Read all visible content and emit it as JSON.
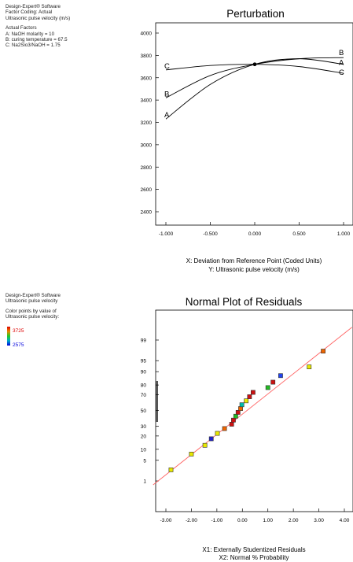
{
  "panel1": {
    "software": "Design-Expert® Software",
    "coding": "Factor Coding: Actual",
    "response": "Ultrasonic pulse velocity (m/s)",
    "factors_header": "Actual Factors",
    "factors": [
      "A: NaOH molarity = 10",
      "B: curing temperature = 67.5",
      "C: Na2Sio3/NaOH = 1.75"
    ]
  },
  "panel2": {
    "software": "Design-Expert® Software",
    "response": "Ultrasonic pulse velocity",
    "color_header": "Color points by value of",
    "color_sub": "Ultrasonic pulse velocity:",
    "legend_max": "3725",
    "legend_min": "2575",
    "legend_max_color": "#dd0000",
    "legend_min_color": "#0000dd"
  },
  "chart_data": [
    {
      "type": "line",
      "title": "Perturbation",
      "xlabel": "X: Deviation from Reference Point (Coded Units)",
      "ylabel": "Y: Ultrasonic pulse velocity (m/s)",
      "xlim": [
        -1.0,
        1.0
      ],
      "ylim": [
        2300,
        4100
      ],
      "xticks": [
        "-1.000",
        "-0.500",
        "0.000",
        "0.500",
        "1.000"
      ],
      "xtick_values": [
        -1,
        -0.5,
        0,
        0.5,
        1
      ],
      "yticks": [
        "2400",
        "2600",
        "2800",
        "3000",
        "3200",
        "3400",
        "3600",
        "3800",
        "4000"
      ],
      "ytick_values": [
        2400,
        2600,
        2800,
        3000,
        3200,
        3400,
        3600,
        3800,
        4000
      ],
      "series": [
        {
          "name": "A",
          "x": [
            -1,
            -0.5,
            0,
            0.5,
            1
          ],
          "y": [
            3230,
            3540,
            3720,
            3770,
            3720
          ]
        },
        {
          "name": "B",
          "x": [
            -1,
            -0.5,
            0,
            0.5,
            1
          ],
          "y": [
            3420,
            3620,
            3720,
            3770,
            3780
          ]
        },
        {
          "name": "C",
          "x": [
            -1,
            -0.5,
            0,
            0.5,
            1
          ],
          "y": [
            3670,
            3710,
            3720,
            3700,
            3640
          ]
        }
      ],
      "reference_point": {
        "x": 0,
        "y": 3720
      }
    },
    {
      "type": "scatter",
      "title": "Normal Plot of Residuals",
      "xlabel": "X1: Externally Studentized Residuals",
      "ylabel": "X2: Normal % Probability",
      "xlim": [
        -3.5,
        4.3
      ],
      "xticks": [
        "-3.00",
        "-2.00",
        "-1.00",
        "0.00",
        "1.00",
        "2.00",
        "3.00",
        "4.00"
      ],
      "xtick_values": [
        -3,
        -2,
        -1,
        0,
        1,
        2,
        3,
        4
      ],
      "ylim": [
        0.4,
        99.8
      ],
      "yticks": [
        "1",
        "5",
        "10",
        "20",
        "30",
        "50",
        "70",
        "80",
        "90",
        "95",
        "99"
      ],
      "ytick_values": [
        1,
        5,
        10,
        20,
        30,
        50,
        70,
        80,
        90,
        95,
        99
      ],
      "reference_line": {
        "x": [
          -3.5,
          4.3
        ],
        "y": [
          0.7,
          99.7
        ],
        "color": "#ff6666"
      },
      "points": [
        {
          "x": -2.8,
          "y": 2.5,
          "color": "#e8e800"
        },
        {
          "x": -2.0,
          "y": 7.5,
          "color": "#e8e800"
        },
        {
          "x": -1.47,
          "y": 12.5,
          "color": "#e8e800"
        },
        {
          "x": -1.22,
          "y": 17.5,
          "color": "#2222cc"
        },
        {
          "x": -0.98,
          "y": 22.5,
          "color": "#e8e800"
        },
        {
          "x": -0.7,
          "y": 27.5,
          "color": "#ee6600"
        },
        {
          "x": -0.42,
          "y": 32.5,
          "color": "#cc1111"
        },
        {
          "x": -0.35,
          "y": 37.5,
          "color": "#cc1111"
        },
        {
          "x": -0.26,
          "y": 42.5,
          "color": "#22bb22"
        },
        {
          "x": -0.17,
          "y": 47.5,
          "color": "#cc1111"
        },
        {
          "x": -0.07,
          "y": 52.5,
          "color": "#ee6600"
        },
        {
          "x": -0.02,
          "y": 57.5,
          "color": "#00bbaa"
        },
        {
          "x": 0.15,
          "y": 62.5,
          "color": "#e8e800"
        },
        {
          "x": 0.28,
          "y": 67.5,
          "color": "#cc1111"
        },
        {
          "x": 0.42,
          "y": 72.5,
          "color": "#cc1111"
        },
        {
          "x": 1.0,
          "y": 77.5,
          "color": "#22bb22"
        },
        {
          "x": 1.2,
          "y": 82.5,
          "color": "#cc1111"
        },
        {
          "x": 1.5,
          "y": 87.5,
          "color": "#2244ee"
        },
        {
          "x": 2.62,
          "y": 92.5,
          "color": "#e8e800"
        },
        {
          "x": 3.17,
          "y": 97.5,
          "color": "#ee6600"
        }
      ]
    }
  ]
}
